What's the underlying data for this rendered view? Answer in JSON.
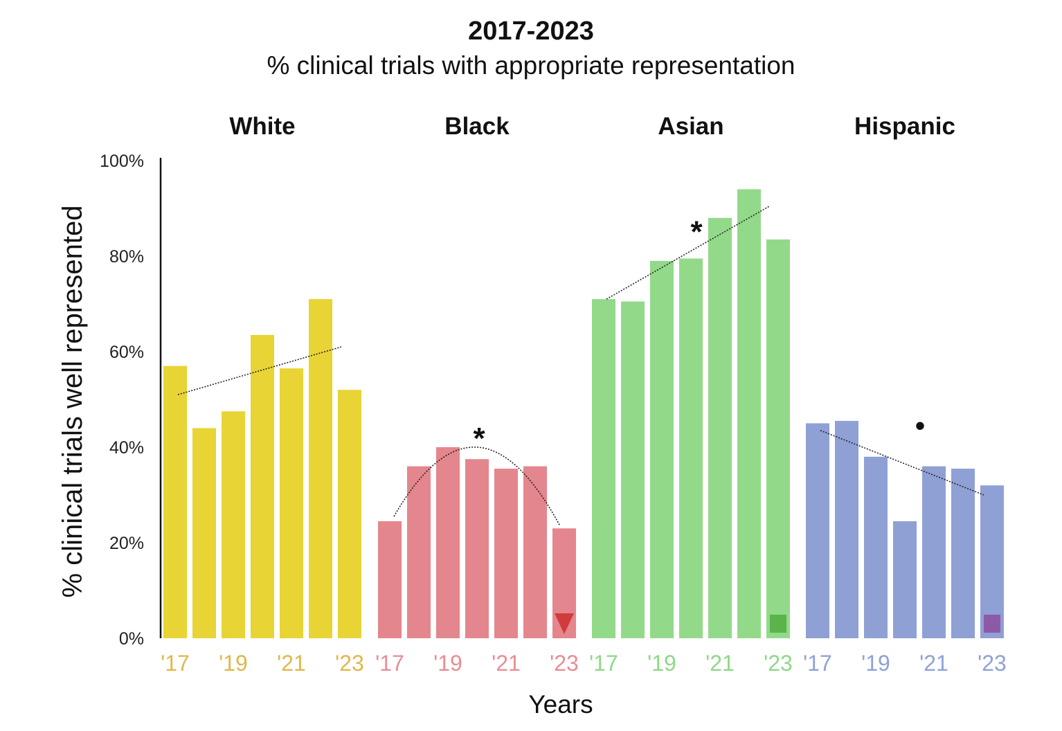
{
  "chart_data": {
    "type": "bar",
    "title": "2017-2023",
    "subtitle": "% clinical trials with appropriate representation",
    "xlabel": "Years",
    "ylabel": "% clinical trials well represented",
    "ylim": [
      0,
      100
    ],
    "yticks": [
      "0%",
      "20%",
      "40%",
      "60%",
      "80%",
      "100%"
    ],
    "years": [
      "2017",
      "2018",
      "2019",
      "2020",
      "2021",
      "2022",
      "2023"
    ],
    "xtick_labels": [
      "'17",
      "'19",
      "'21",
      "'23"
    ],
    "groups": [
      {
        "name": "White",
        "color": "#e8d435",
        "tick_color": "#e0b84a",
        "values": [
          57,
          44,
          47.5,
          63.5,
          56.5,
          71,
          52
        ],
        "trend": {
          "type": "linear",
          "start": 51,
          "end": 61
        },
        "significance": "",
        "marker": null
      },
      {
        "name": "Black",
        "color": "#e4868d",
        "tick_color": "#e88e94",
        "values": [
          24.5,
          36,
          40,
          37.5,
          35.5,
          36,
          23
        ],
        "trend": {
          "type": "quadratic",
          "start": 25.5,
          "peak": 40,
          "end": 23.5
        },
        "significance": "*",
        "marker": {
          "shape": "triangle-down",
          "color": "#cf3c3c"
        }
      },
      {
        "name": "Asian",
        "color": "#93d98a",
        "tick_color": "#8fd887",
        "values": [
          71,
          70.5,
          79,
          79.5,
          88,
          94,
          83.5
        ],
        "trend": {
          "type": "linear",
          "start": 71,
          "end": 90.5
        },
        "significance": "*",
        "marker": {
          "shape": "square",
          "color": "#5ab449"
        }
      },
      {
        "name": "Hispanic",
        "color": "#8fa0d4",
        "tick_color": "#8fa2d6",
        "values": [
          45,
          45.5,
          38,
          24.5,
          36,
          35.5,
          32
        ],
        "trend": {
          "type": "linear",
          "start": 43.5,
          "end": 30
        },
        "significance": "•",
        "marker": {
          "shape": "square",
          "color": "#8d5aa8"
        }
      }
    ]
  }
}
